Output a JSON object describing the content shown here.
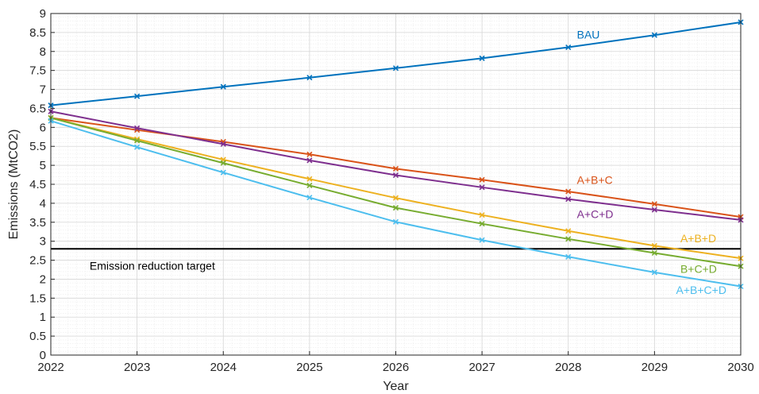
{
  "chart_data": {
    "type": "line",
    "title": "",
    "xlabel": "Year",
    "ylabel": "Emissions (MtCO2)",
    "xlim": [
      2022,
      2030
    ],
    "ylim": [
      0,
      9
    ],
    "x": [
      2022,
      2023,
      2024,
      2025,
      2026,
      2027,
      2028,
      2029,
      2030
    ],
    "x_ticks": [
      "2022",
      "2023",
      "2024",
      "2025",
      "2026",
      "2027",
      "2028",
      "2029",
      "2030"
    ],
    "y_ticks": [
      "0",
      "0.5",
      "1",
      "1.5",
      "2",
      "2.5",
      "3",
      "3.5",
      "4",
      "4.5",
      "5",
      "5.5",
      "6",
      "6.5",
      "7",
      "7.5",
      "8",
      "8.5",
      "9"
    ],
    "y_tick_values": [
      0,
      0.5,
      1,
      1.5,
      2,
      2.5,
      3,
      3.5,
      4,
      4.5,
      5,
      5.5,
      6,
      6.5,
      7,
      7.5,
      8,
      8.5,
      9
    ],
    "grid": true,
    "marker": "x",
    "series": [
      {
        "name": "BAU",
        "color": "#0072BD",
        "values": [
          6.58,
          6.82,
          7.07,
          7.31,
          7.56,
          7.82,
          8.11,
          8.43,
          8.77
        ],
        "label_at": [
          2028.1,
          8.45
        ]
      },
      {
        "name": "A+B+C",
        "color": "#D95319",
        "values": [
          6.25,
          5.93,
          5.62,
          5.29,
          4.91,
          4.62,
          4.31,
          3.98,
          3.64
        ],
        "label_at": [
          2028.1,
          4.62
        ]
      },
      {
        "name": "A+C+D",
        "color": "#7E2F8E",
        "values": [
          6.42,
          5.98,
          5.56,
          5.13,
          4.74,
          4.42,
          4.11,
          3.83,
          3.56
        ],
        "label_at": [
          2028.1,
          3.72
        ]
      },
      {
        "name": "A+B+D",
        "color": "#EDB120",
        "values": [
          6.25,
          5.69,
          5.15,
          4.64,
          4.14,
          3.69,
          3.27,
          2.88,
          2.55
        ],
        "label_at": [
          2029.3,
          3.08
        ]
      },
      {
        "name": "B+C+D",
        "color": "#77AC30",
        "values": [
          6.25,
          5.65,
          5.06,
          4.47,
          3.88,
          3.46,
          3.06,
          2.69,
          2.34
        ],
        "label_at": [
          2029.3,
          2.27
        ]
      },
      {
        "name": "A+B+C+D",
        "color": "#4DBEEE",
        "values": [
          6.17,
          5.48,
          4.81,
          4.15,
          3.51,
          3.03,
          2.59,
          2.18,
          1.81
        ],
        "label_at": [
          2029.25,
          1.72
        ]
      }
    ],
    "annotations": [
      {
        "text": "Emission reduction target",
        "y": 2.8,
        "x": 2022.45,
        "label_y": 2.35,
        "color": "#000000"
      }
    ]
  }
}
